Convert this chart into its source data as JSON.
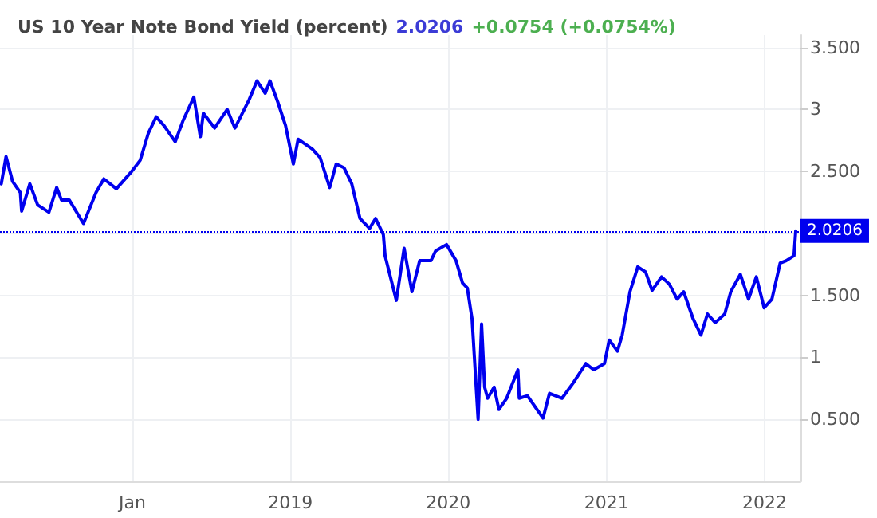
{
  "chart_data": {
    "type": "line",
    "title": "US 10 Year Note Bond Yield (percent)",
    "annotations": [
      "2.0206",
      "+0.0754 (+0.0754%)"
    ],
    "x": [
      "2017-03-04",
      "2017-03-15",
      "2017-03-30",
      "2017-04-17",
      "2017-04-20",
      "2017-05-09",
      "2017-05-27",
      "2017-06-22",
      "2017-07-10",
      "2017-07-21",
      "2017-08-08",
      "2017-09-10",
      "2017-10-09",
      "2017-10-27",
      "2017-11-25",
      "2017-12-28",
      "2018-01-19",
      "2018-02-07",
      "2018-02-25",
      "2018-03-15",
      "2018-04-10",
      "2018-04-28",
      "2018-05-23",
      "2018-06-07",
      "2018-06-14",
      "2018-07-10",
      "2018-08-08",
      "2018-08-26",
      "2018-09-28",
      "2018-10-16",
      "2018-11-04",
      "2018-11-15",
      "2018-12-03",
      "2018-12-21",
      "2019-01-08",
      "2019-01-19",
      "2019-02-21",
      "2019-03-11",
      "2019-04-02",
      "2019-04-17",
      "2019-05-05",
      "2019-05-23",
      "2019-06-11",
      "2019-07-03",
      "2019-07-17",
      "2019-08-04",
      "2019-08-08",
      "2019-09-03",
      "2019-09-21",
      "2019-10-09",
      "2019-10-27",
      "2019-11-22",
      "2019-12-03",
      "2019-12-28",
      "2020-01-19",
      "2020-02-03",
      "2020-02-14",
      "2020-02-25",
      "2020-03-10",
      "2020-03-18",
      "2020-03-25",
      "2020-04-01",
      "2020-04-16",
      "2020-04-27",
      "2020-05-15",
      "2020-06-10",
      "2020-06-13",
      "2020-07-02",
      "2020-08-07",
      "2020-08-22",
      "2020-09-20",
      "2020-10-15",
      "2020-11-14",
      "2020-12-02",
      "2020-12-27",
      "2021-01-07",
      "2021-01-26",
      "2021-02-06",
      "2021-02-24",
      "2021-03-14",
      "2021-04-01",
      "2021-04-16",
      "2021-05-08",
      "2021-05-26",
      "2021-06-13",
      "2021-06-28",
      "2021-07-20",
      "2021-08-07",
      "2021-08-22",
      "2021-09-09",
      "2021-10-01",
      "2021-10-15",
      "2021-11-06",
      "2021-11-25",
      "2021-12-13",
      "2021-12-31",
      "2022-01-18",
      "2022-02-06",
      "2022-02-20",
      "2022-03-10",
      "2022-03-14"
    ],
    "series": [
      {
        "color": "#0000ee",
        "values": [
          2.4,
          2.62,
          2.42,
          2.33,
          2.18,
          2.4,
          2.23,
          2.17,
          2.37,
          2.27,
          2.27,
          2.08,
          2.33,
          2.44,
          2.36,
          2.49,
          2.59,
          2.81,
          2.94,
          2.87,
          2.74,
          2.91,
          3.1,
          2.78,
          2.97,
          2.85,
          3.0,
          2.85,
          3.08,
          3.23,
          3.13,
          3.23,
          3.06,
          2.87,
          2.56,
          2.76,
          2.68,
          2.61,
          2.37,
          2.56,
          2.53,
          2.4,
          2.12,
          2.04,
          2.12,
          1.99,
          1.82,
          1.46,
          1.88,
          1.53,
          1.78,
          1.78,
          1.86,
          1.91,
          1.78,
          1.6,
          1.56,
          1.31,
          0.5,
          1.27,
          0.76,
          0.67,
          0.76,
          0.58,
          0.67,
          0.9,
          0.67,
          0.69,
          0.51,
          0.71,
          0.67,
          0.79,
          0.95,
          0.9,
          0.95,
          1.14,
          1.05,
          1.18,
          1.53,
          1.73,
          1.69,
          1.54,
          1.65,
          1.59,
          1.47,
          1.53,
          1.31,
          1.18,
          1.35,
          1.28,
          1.35,
          1.53,
          1.67,
          1.47,
          1.65,
          1.4,
          1.47,
          1.76,
          1.78,
          1.82,
          2.02
        ]
      }
    ],
    "xlim": [
      "2017-03-01",
      "2022-03-25"
    ],
    "xticks": [
      {
        "value": "2018-01-01",
        "label": "Jan"
      },
      {
        "value": "2019-01-01",
        "label": "2019"
      },
      {
        "value": "2020-01-01",
        "label": "2020"
      },
      {
        "value": "2021-01-01",
        "label": "2021"
      },
      {
        "value": "2022-01-01",
        "label": "2022"
      }
    ],
    "ylim": [
      0,
      3.6
    ],
    "yticks": [
      {
        "value": 0.5,
        "label": "0.500"
      },
      1,
      {
        "value": 1.5,
        "label": "1.500"
      },
      {
        "value": 2,
        "label": null
      },
      {
        "value": 2.5,
        "label": "2.500"
      },
      3,
      {
        "value": 3.5,
        "label": "3.500"
      }
    ],
    "ref_lines": [
      {
        "axis": "y",
        "value": 2.0206,
        "label": "2.0206",
        "color": "#0000ee",
        "line_style": "dotted"
      }
    ],
    "grid": true,
    "marker": "none",
    "line_style": "solid"
  }
}
